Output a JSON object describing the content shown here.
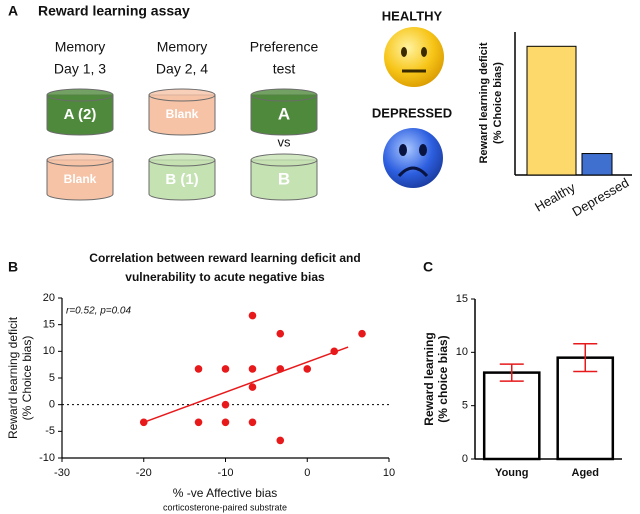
{
  "panels": {
    "a": "A",
    "b": "B",
    "c": "C"
  },
  "diagram": {
    "title": "Reward learning assay",
    "headers": [
      [
        "Memory",
        "Day 1, 3"
      ],
      [
        "Memory",
        "Day 2, 4"
      ],
      [
        "Preference",
        "test"
      ]
    ],
    "rows": [
      [
        {
          "label": "A (2)",
          "color": "#4f8a3c"
        },
        {
          "label": "Blank",
          "color": "#f6c3a7"
        },
        {
          "label": "A",
          "color": "#4f8a3c"
        }
      ],
      [
        {
          "label": "Blank",
          "color": "#f6c3a7"
        },
        {
          "label": "B (1)",
          "color": "#c5e2b3"
        },
        {
          "label": "B",
          "color": "#c5e2b3"
        }
      ]
    ],
    "vs": "vs",
    "healthy": "HEALTHY",
    "depressed": "DEPRESSED"
  },
  "chart_data": [
    {
      "type": "bar",
      "ylabel": [
        "Reward learning deficit",
        "(% Choice bias)"
      ],
      "categories": [
        "Healthy",
        "Depressed"
      ],
      "values": [
        90,
        15
      ],
      "colors": [
        "#fdd96b",
        "#3f6fcf"
      ],
      "ylim": [
        0,
        100
      ]
    },
    {
      "type": "scatter",
      "title": [
        "Correlation between reward learning deficit and",
        "vulnerability to acute negative bias"
      ],
      "xlabel": "% -ve Affective bias",
      "xlabel_sub": "corticosterone-paired substrate",
      "ylabel": [
        "Reward learning deficit",
        "(% Choice bias)"
      ],
      "annotation": "r=0.52, p=0.04",
      "series": [
        {
          "color": "#e8191b",
          "x": [
            -20,
            -13.3,
            -13.3,
            -10,
            -10,
            -10,
            -6.7,
            -6.7,
            -6.7,
            -6.7,
            -3.3,
            -3.3,
            -3.3,
            0,
            3.3,
            6.7
          ],
          "values": [
            -3.3,
            6.7,
            -3.3,
            6.7,
            0,
            -3.3,
            16.7,
            6.7,
            3.3,
            -3.3,
            13.3,
            6.7,
            -6.7,
            6.7,
            10,
            13.3
          ]
        }
      ],
      "fit": {
        "x": [
          -20,
          5
        ],
        "y": [
          -3.3,
          10.8
        ],
        "color": "#e8191b"
      },
      "hline": 0,
      "xlim": [
        -30,
        10
      ],
      "xticks": [
        -30,
        -20,
        -10,
        0,
        10
      ],
      "ylim": [
        -10,
        20
      ],
      "yticks": [
        -10,
        -5,
        0,
        5,
        10,
        15,
        20
      ]
    },
    {
      "type": "bar",
      "ylabel": [
        "Reward learning",
        "(% choice bias)"
      ],
      "categories": [
        "Young",
        "Aged"
      ],
      "values": [
        8.1,
        9.5
      ],
      "errors": [
        0.8,
        1.3
      ],
      "color": "#ffffff",
      "error_color": "#e8191b",
      "ylim": [
        0,
        15
      ],
      "yticks": [
        0,
        5,
        10,
        15
      ]
    }
  ]
}
